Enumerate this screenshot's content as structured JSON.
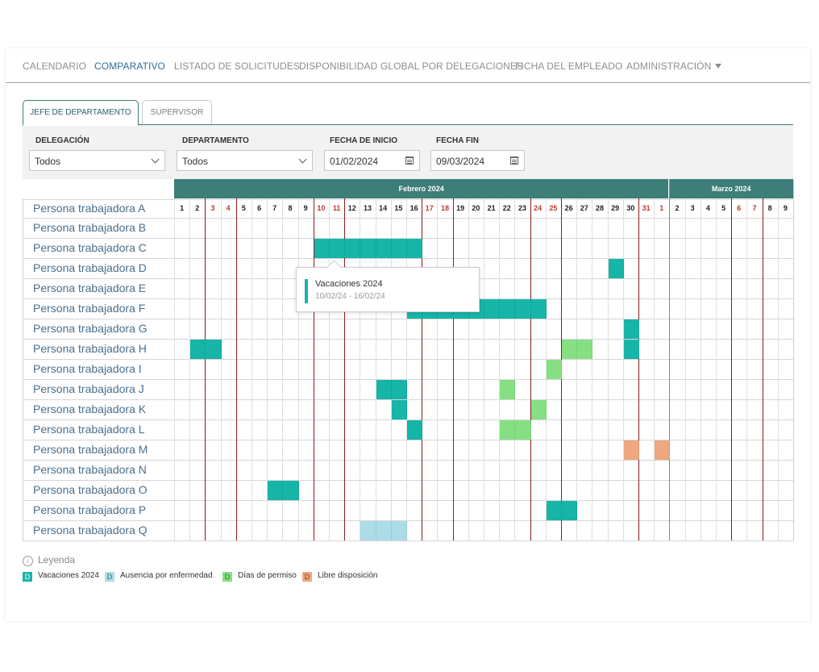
{
  "nav": {
    "items": [
      "CALENDARIO",
      "COMPARATIVO",
      "LISTADO DE SOLICITUDES",
      "DISPONIBILIDAD GLOBAL POR DELEGACIONES",
      "FICHA DEL EMPLEADO",
      "ADMINISTRACIÓN"
    ],
    "active": "COMPARATIVO"
  },
  "tabs": [
    "JEFE DE DEPARTAMENTO",
    "SUPERVISOR"
  ],
  "filters": {
    "delegacion": {
      "label": "DELEGACIÓN",
      "value": "Todos"
    },
    "departamento": {
      "label": "DEPARTAMENTO",
      "value": "Todos"
    },
    "fecha_inicio": {
      "label": "FECHA DE INICIO",
      "value": "01/02/2024"
    },
    "fecha_fin": {
      "label": "FECHA FIN",
      "value": "09/03/2024"
    }
  },
  "months": [
    {
      "name": "Febrero 2024",
      "days": [
        1,
        2,
        3,
        4,
        5,
        6,
        7,
        8,
        9,
        10,
        11,
        12,
        13,
        14,
        15,
        16,
        17,
        18,
        19,
        20,
        21,
        22,
        23,
        24,
        25,
        26,
        27,
        28,
        29,
        30,
        31,
        1
      ]
    },
    {
      "name": "Marzo 2024",
      "days": [
        2,
        3,
        4,
        5,
        6,
        7,
        8,
        9
      ]
    }
  ],
  "weekend_columns": [
    2,
    3,
    9,
    10,
    16,
    17,
    23,
    24,
    30,
    31,
    36,
    37
  ],
  "employees": [
    "Persona trabajadora A",
    "Persona trabajadora B",
    "Persona trabajadora C",
    "Persona trabajadora D",
    "Persona trabajadora E",
    "Persona trabajadora F",
    "Persona trabajadora G",
    "Persona trabajadora H",
    "Persona trabajadora I",
    "Persona trabajadora J",
    "Persona trabajadora K",
    "Persona trabajadora L",
    "Persona trabajadora M",
    "Persona trabajadora N",
    "Persona trabajadora O",
    "Persona trabajadora P",
    "Persona trabajadora Q"
  ],
  "absences": [
    {
      "row": 2,
      "start": 9,
      "end": 15,
      "type": "vacaciones"
    },
    {
      "row": 3,
      "start": 28,
      "end": 28,
      "type": "vacaciones"
    },
    {
      "row": 5,
      "start": 15,
      "end": 23,
      "type": "vacaciones"
    },
    {
      "row": 6,
      "start": 29,
      "end": 29,
      "type": "vacaciones"
    },
    {
      "row": 7,
      "start": 1,
      "end": 2,
      "type": "vacaciones"
    },
    {
      "row": 7,
      "start": 25,
      "end": 26,
      "type": "permiso"
    },
    {
      "row": 7,
      "start": 29,
      "end": 29,
      "type": "vacaciones"
    },
    {
      "row": 8,
      "start": 24,
      "end": 24,
      "type": "permiso"
    },
    {
      "row": 9,
      "start": 13,
      "end": 14,
      "type": "vacaciones"
    },
    {
      "row": 9,
      "start": 21,
      "end": 21,
      "type": "permiso"
    },
    {
      "row": 10,
      "start": 14,
      "end": 14,
      "type": "vacaciones"
    },
    {
      "row": 10,
      "start": 23,
      "end": 23,
      "type": "permiso"
    },
    {
      "row": 11,
      "start": 15,
      "end": 15,
      "type": "vacaciones"
    },
    {
      "row": 11,
      "start": 21,
      "end": 22,
      "type": "permiso"
    },
    {
      "row": 12,
      "start": 29,
      "end": 29,
      "type": "libre"
    },
    {
      "row": 12,
      "start": 31,
      "end": 31,
      "type": "libre"
    },
    {
      "row": 14,
      "start": 6,
      "end": 7,
      "type": "vacaciones"
    },
    {
      "row": 15,
      "start": 24,
      "end": 25,
      "type": "vacaciones"
    },
    {
      "row": 16,
      "start": 12,
      "end": 14,
      "type": "enfermedad"
    }
  ],
  "colors": {
    "vacaciones": "#16b5a7",
    "enfermedad": "#acdde6",
    "permiso": "#86e083",
    "libre": "#eea77f",
    "header": "#3d7e79",
    "employee_text": "#4a6f8c",
    "weekend_text": "#c0392b",
    "separator": "#8b1d1d"
  },
  "tooltip": {
    "title": "Vacaciones 2024",
    "dates": "10/02/24 - 16/02/24"
  },
  "legend": {
    "title": "Leyenda",
    "items": [
      {
        "type": "vacaciones",
        "code": "D",
        "label": "Vacaciones 2024"
      },
      {
        "type": "enfermedad",
        "code": "D",
        "label": "Ausencia por enfermedad"
      },
      {
        "type": "permiso",
        "code": "D",
        "label": "Días de permiso"
      },
      {
        "type": "libre",
        "code": "D",
        "label": "Libre disposición"
      }
    ]
  }
}
